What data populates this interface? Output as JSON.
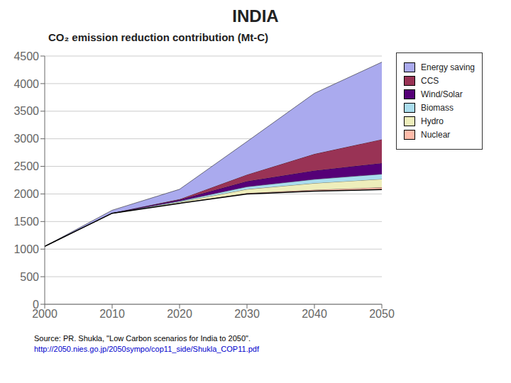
{
  "chart_data": {
    "type": "area",
    "title": "INDIA",
    "subtitle": "CO₂ emission reduction contribution (Mt-C)",
    "x": [
      2000,
      2010,
      2020,
      2030,
      2040,
      2050
    ],
    "series": [
      {
        "type": "line",
        "color": "#000000",
        "values": [
          1050,
          1650,
          1830,
          2000,
          2050,
          2080
        ]
      },
      {
        "name": "Nuclear",
        "color": "#ffbbaa",
        "values": [
          0,
          0,
          5,
          15,
          25,
          40
        ]
      },
      {
        "name": "Hydro",
        "color": "#eeeebb",
        "values": [
          0,
          0,
          20,
          70,
          120,
          150
        ]
      },
      {
        "name": "Biomass",
        "color": "#aaddee",
        "values": [
          0,
          0,
          15,
          45,
          70,
          90
        ]
      },
      {
        "name": "Wind/Solar",
        "color": "#550077",
        "values": [
          0,
          5,
          25,
          100,
          160,
          200
        ]
      },
      {
        "name": "CCS",
        "color": "#993355",
        "values": [
          0,
          0,
          10,
          120,
          300,
          430
        ]
      },
      {
        "name": "Energy saving",
        "color": "#aaaaee",
        "values": [
          0,
          50,
          180,
          600,
          1100,
          1400
        ]
      }
    ],
    "stacked": true,
    "xlim": [
      2000,
      2050
    ],
    "xticks": [
      2000,
      2010,
      2020,
      2030,
      2040,
      2050
    ],
    "ylim": [
      0,
      4500
    ],
    "yticks": [
      0,
      500,
      1000,
      1500,
      2000,
      2500,
      3000,
      3500,
      4000,
      4500
    ],
    "grid": true,
    "legend": "right",
    "annotations": [
      {
        "text": "Source: PR. Shukla, \"Low Carbon scenarios for India to 2050\".",
        "color": "#000000"
      },
      {
        "text": "http://2050.nies.go.jp/2050sympo/cop11_side/Shukla_COP11.pdf",
        "color": "#0000cc"
      }
    ]
  }
}
